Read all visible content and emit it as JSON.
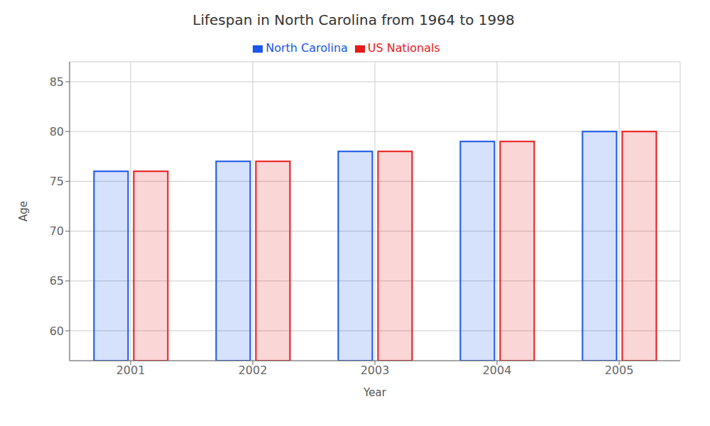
{
  "chart_data": {
    "type": "bar",
    "title": "Lifespan in North Carolina from 1964 to 1998",
    "x_label": "Year",
    "y_label": "Age",
    "categories": [
      "2001",
      "2002",
      "2003",
      "2004",
      "2005"
    ],
    "series": [
      {
        "name": "North Carolina",
        "color": "#1a56e8",
        "values": [
          76,
          77,
          78,
          79,
          80
        ]
      },
      {
        "name": "US Nationals",
        "color": "#e81a1a",
        "values": [
          76,
          77,
          78,
          79,
          80
        ]
      }
    ],
    "ylim": [
      57,
      87
    ],
    "yticks": [
      60,
      65,
      70,
      75,
      80,
      85
    ],
    "grid": true,
    "legend": "top"
  }
}
